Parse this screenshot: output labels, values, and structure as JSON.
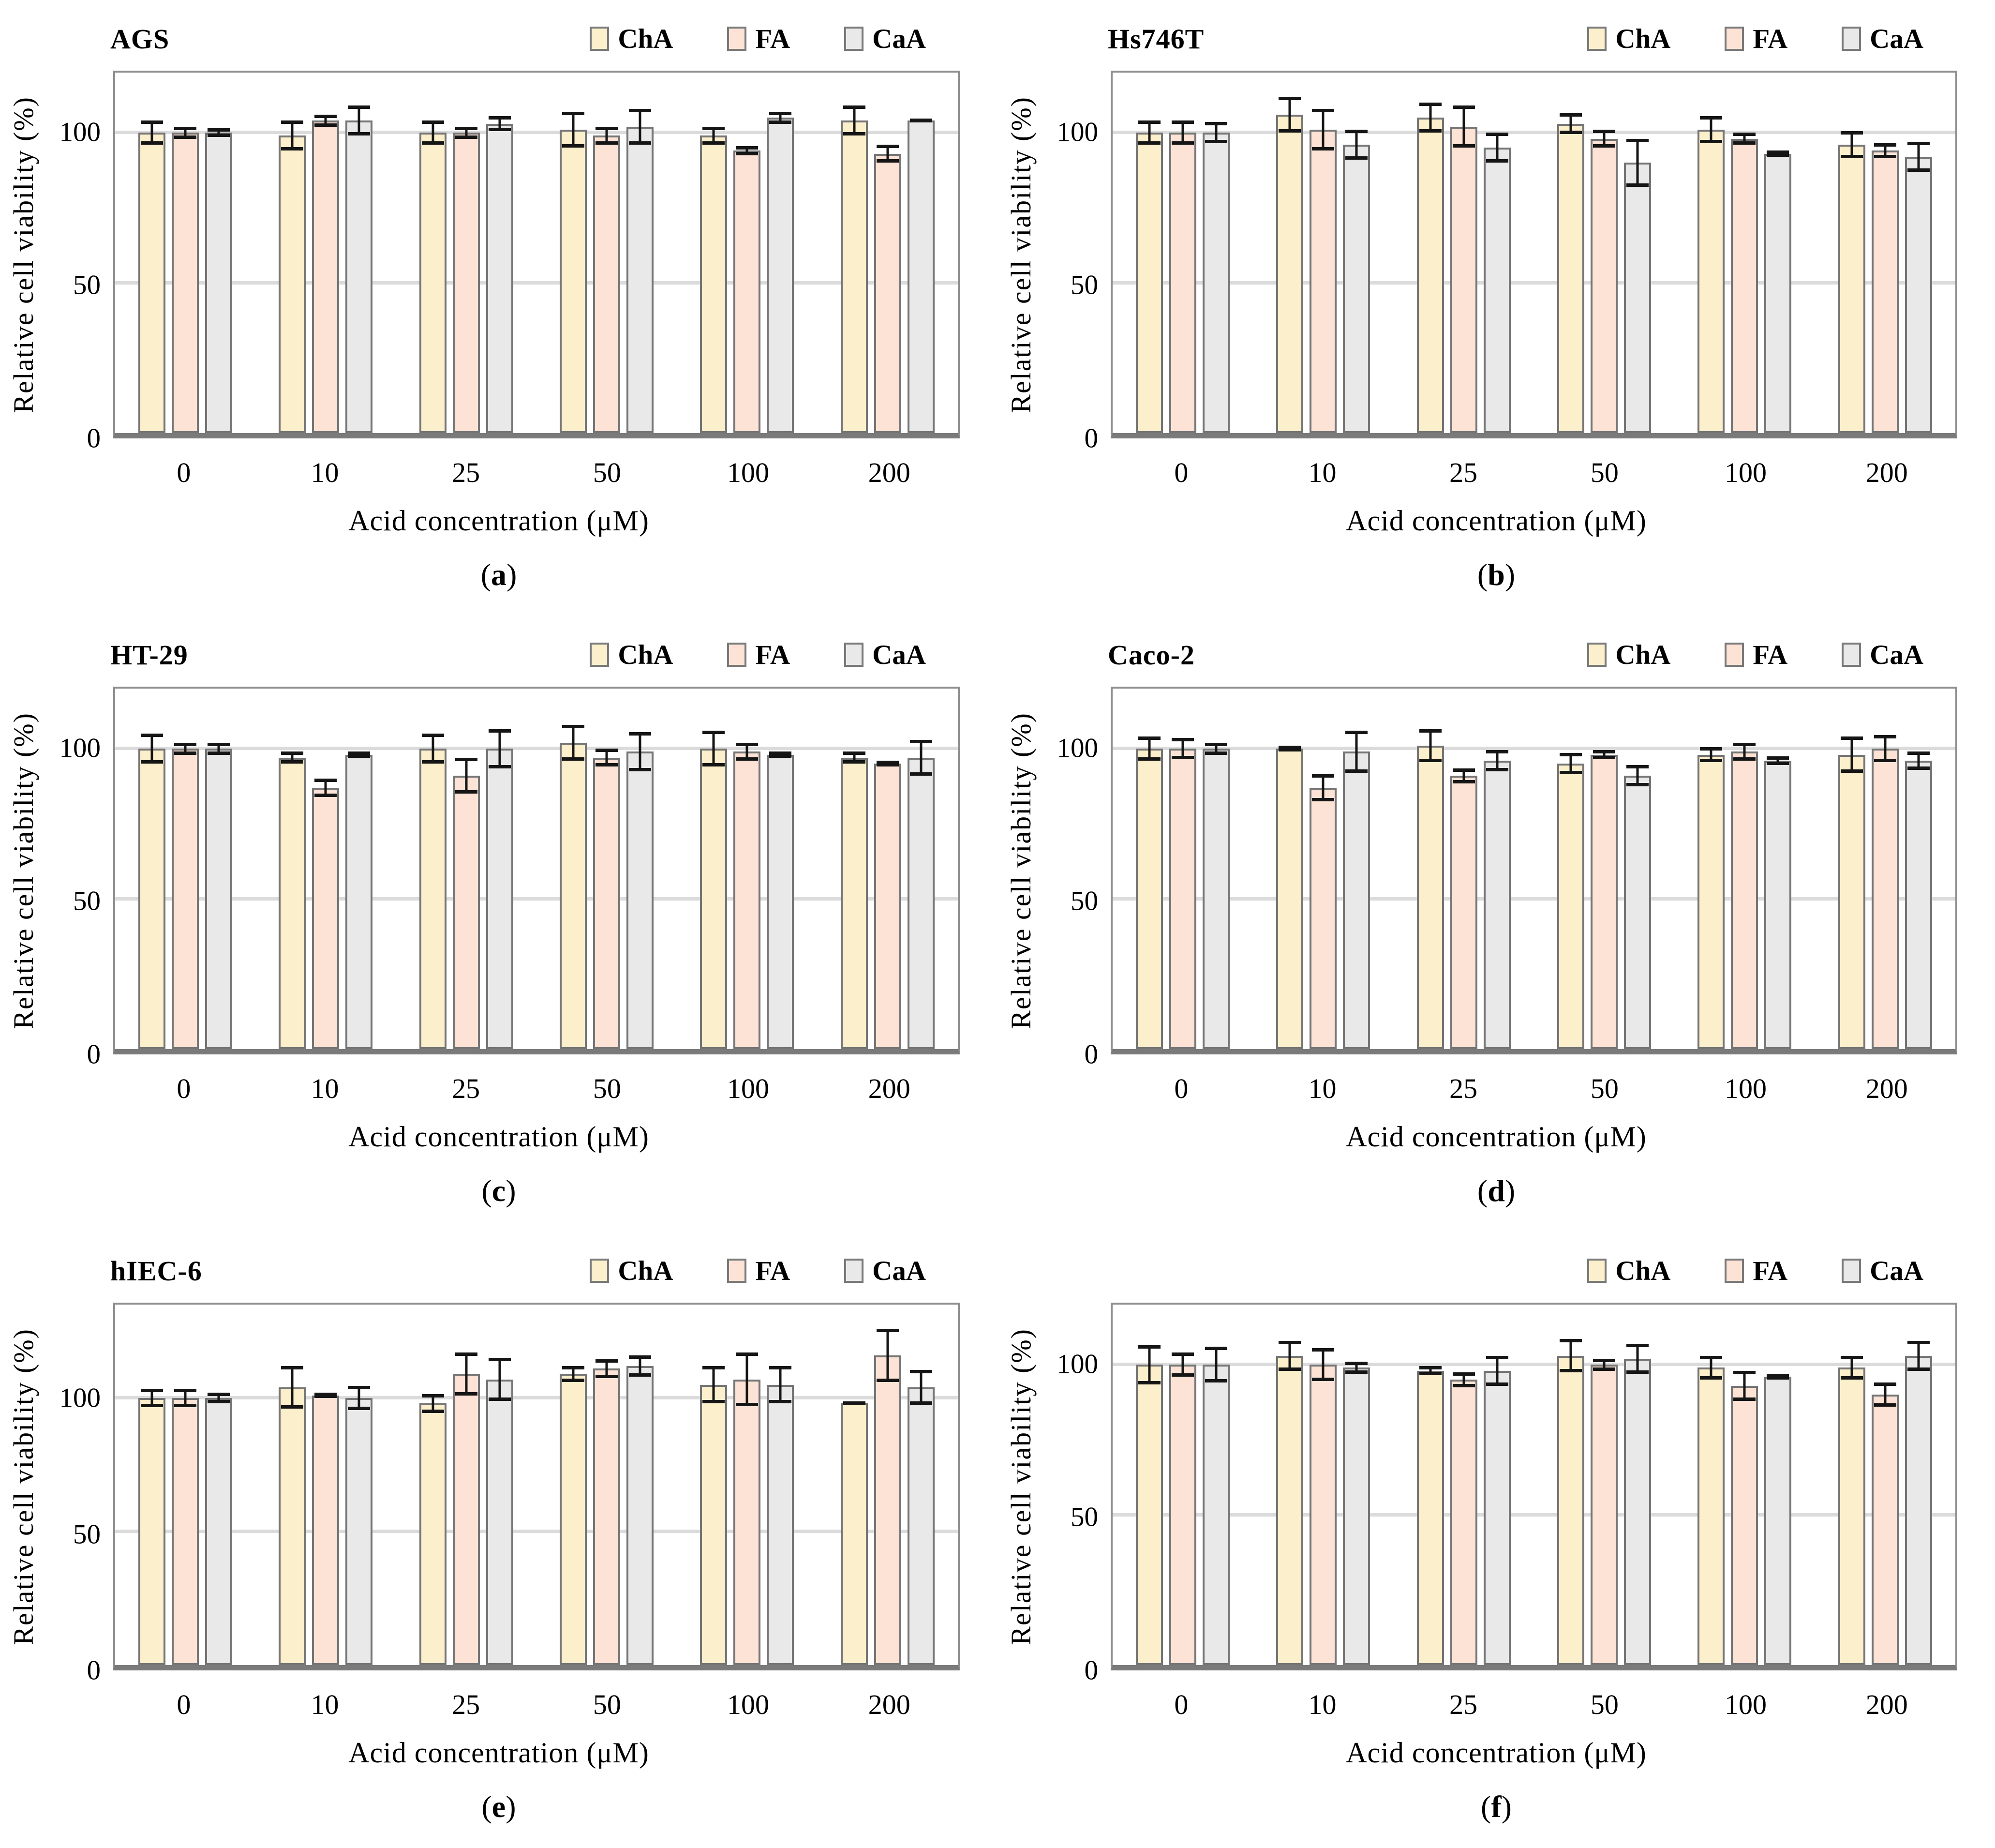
{
  "figure": {
    "caption_open": "(",
    "caption_close": ")",
    "colors": {
      "ChA": "#fcefcb",
      "FA": "#fce3d5",
      "CaA": "#e9e9e9",
      "bar_border": "#757575",
      "gridline": "#dbdbdb",
      "plot_border": "#8e8e8e",
      "axis_line": "#7a7a7a",
      "error_bar": "#151515"
    }
  },
  "chart_data": [
    {
      "type": "bar",
      "panel_letter": "a",
      "title": "AGS",
      "xlabel": "Acid concentration (μM)",
      "ylabel": "Relative cell viability (%)",
      "categories": [
        "0",
        "10",
        "25",
        "50",
        "100",
        "200"
      ],
      "yticks": [
        "0",
        "50",
        "100"
      ],
      "ylim": [
        0,
        120
      ],
      "grid": true,
      "legend_position": "top-right",
      "series": [
        {
          "name": "ChA",
          "color": "#fcefcb",
          "values": [
            100,
            99,
            100,
            101,
            99,
            104
          ],
          "errors": [
            4,
            5,
            4,
            6,
            3,
            5
          ]
        },
        {
          "name": "FA",
          "color": "#fce3d5",
          "values": [
            100,
            104,
            100,
            99,
            94,
            93
          ],
          "errors": [
            2,
            2,
            2,
            3,
            1.5,
            3
          ]
        },
        {
          "name": "CaA",
          "color": "#e9e9e9",
          "values": [
            100,
            104,
            103,
            102,
            105,
            104
          ],
          "errors": [
            1.5,
            5,
            2.5,
            6,
            2,
            0.5
          ]
        }
      ]
    },
    {
      "type": "bar",
      "panel_letter": "b",
      "title": "Hs746T",
      "xlabel": "Acid concentration (μM)",
      "ylabel": "Relative cell viability (%)",
      "categories": [
        "0",
        "10",
        "25",
        "50",
        "100",
        "200"
      ],
      "yticks": [
        "0",
        "50",
        "100"
      ],
      "ylim": [
        0,
        120
      ],
      "grid": true,
      "legend_position": "top-right",
      "series": [
        {
          "name": "ChA",
          "color": "#fcefcb",
          "values": [
            100,
            106,
            105,
            103,
            101,
            96
          ],
          "errors": [
            4,
            6,
            5,
            3.5,
            4.5,
            4.5
          ]
        },
        {
          "name": "FA",
          "color": "#fce3d5",
          "values": [
            100,
            101,
            102,
            98,
            98,
            94
          ],
          "errors": [
            4,
            7,
            7,
            3,
            2,
            2.5
          ]
        },
        {
          "name": "CaA",
          "color": "#e9e9e9",
          "values": [
            100,
            96,
            95,
            90,
            93,
            92
          ],
          "errors": [
            3.5,
            5,
            5,
            8,
            1,
            5
          ]
        }
      ]
    },
    {
      "type": "bar",
      "panel_letter": "c",
      "title": "HT-29",
      "xlabel": "Acid concentration (μM)",
      "ylabel": "Relative cell viability (%)",
      "categories": [
        "0",
        "10",
        "25",
        "50",
        "100",
        "200"
      ],
      "yticks": [
        "0",
        "50",
        "100"
      ],
      "ylim": [
        0,
        120
      ],
      "grid": true,
      "legend_position": "top-right",
      "series": [
        {
          "name": "ChA",
          "color": "#fcefcb",
          "values": [
            100,
            97,
            100,
            102,
            100,
            97
          ],
          "errors": [
            5,
            2,
            5,
            6,
            6,
            2
          ]
        },
        {
          "name": "FA",
          "color": "#fce3d5",
          "values": [
            100,
            87,
            91,
            97,
            99,
            95
          ],
          "errors": [
            2,
            3,
            6,
            3,
            3,
            1
          ]
        },
        {
          "name": "CaA",
          "color": "#e9e9e9",
          "values": [
            100,
            98,
            100,
            99,
            98,
            97
          ],
          "errors": [
            2,
            1,
            6.5,
            6.5,
            1,
            6
          ]
        }
      ]
    },
    {
      "type": "bar",
      "panel_letter": "d",
      "title": "Caco-2",
      "xlabel": "Acid concentration (μM)",
      "ylabel": "Relative cell viability (%)",
      "categories": [
        "0",
        "10",
        "25",
        "50",
        "100",
        "200"
      ],
      "yticks": [
        "0",
        "50",
        "100"
      ],
      "ylim": [
        0,
        120
      ],
      "grid": true,
      "legend_position": "top-right",
      "series": [
        {
          "name": "ChA",
          "color": "#fcefcb",
          "values": [
            100,
            100,
            101,
            95,
            98,
            98
          ],
          "errors": [
            4,
            1,
            5.5,
            3.5,
            2.5,
            6
          ]
        },
        {
          "name": "FA",
          "color": "#fce3d5",
          "values": [
            100,
            87,
            91,
            98,
            99,
            100
          ],
          "errors": [
            3.5,
            4.5,
            2.5,
            1.5,
            3,
            4.5
          ]
        },
        {
          "name": "CaA",
          "color": "#e9e9e9",
          "values": [
            100,
            99,
            96,
            91,
            96,
            96
          ],
          "errors": [
            2,
            7,
            3.5,
            3.5,
            1.5,
            3
          ]
        }
      ]
    },
    {
      "type": "bar",
      "panel_letter": "e",
      "title": "hIEC-6",
      "xlabel": "Acid concentration (μM)",
      "ylabel": "Relative cell viability (%)",
      "categories": [
        "0",
        "10",
        "25",
        "50",
        "100",
        "200"
      ],
      "yticks": [
        "0",
        "50",
        "100"
      ],
      "ylim": [
        0,
        135
      ],
      "grid": true,
      "legend_position": "top-right",
      "series": [
        {
          "name": "ChA",
          "color": "#fcefcb",
          "values": [
            100,
            104,
            98,
            109,
            105,
            98
          ],
          "errors": [
            3.5,
            8,
            3.5,
            3,
            7,
            0.5
          ]
        },
        {
          "name": "FA",
          "color": "#fce3d5",
          "values": [
            100,
            101,
            109,
            111,
            107,
            116
          ],
          "errors": [
            3.5,
            1,
            8,
            3.5,
            10,
            10
          ]
        },
        {
          "name": "CaA",
          "color": "#e9e9e9",
          "values": [
            100,
            100,
            107,
            112,
            105,
            104
          ],
          "errors": [
            2,
            4.5,
            8,
            4,
            7,
            6.5
          ]
        }
      ]
    },
    {
      "type": "bar",
      "panel_letter": "f",
      "title": "",
      "xlabel": "Acid concentration (μM)",
      "ylabel": "Relative cell viability (%)",
      "categories": [
        "0",
        "10",
        "25",
        "50",
        "100",
        "200"
      ],
      "yticks": [
        "0",
        "50",
        "100"
      ],
      "ylim": [
        0,
        120
      ],
      "grid": true,
      "legend_position": "top-right",
      "series": [
        {
          "name": "ChA",
          "color": "#fcefcb",
          "values": [
            100,
            103,
            98,
            103,
            99,
            99
          ],
          "errors": [
            6.5,
            5,
            1.5,
            5.5,
            4,
            4
          ]
        },
        {
          "name": "FA",
          "color": "#fce3d5",
          "values": [
            100,
            100,
            95,
            100,
            93,
            90
          ],
          "errors": [
            4,
            5.5,
            2.5,
            2,
            5,
            4
          ]
        },
        {
          "name": "CaA",
          "color": "#e9e9e9",
          "values": [
            100,
            99,
            98,
            102,
            96,
            103
          ],
          "errors": [
            6,
            2,
            5,
            5,
            1,
            5
          ]
        }
      ]
    }
  ]
}
